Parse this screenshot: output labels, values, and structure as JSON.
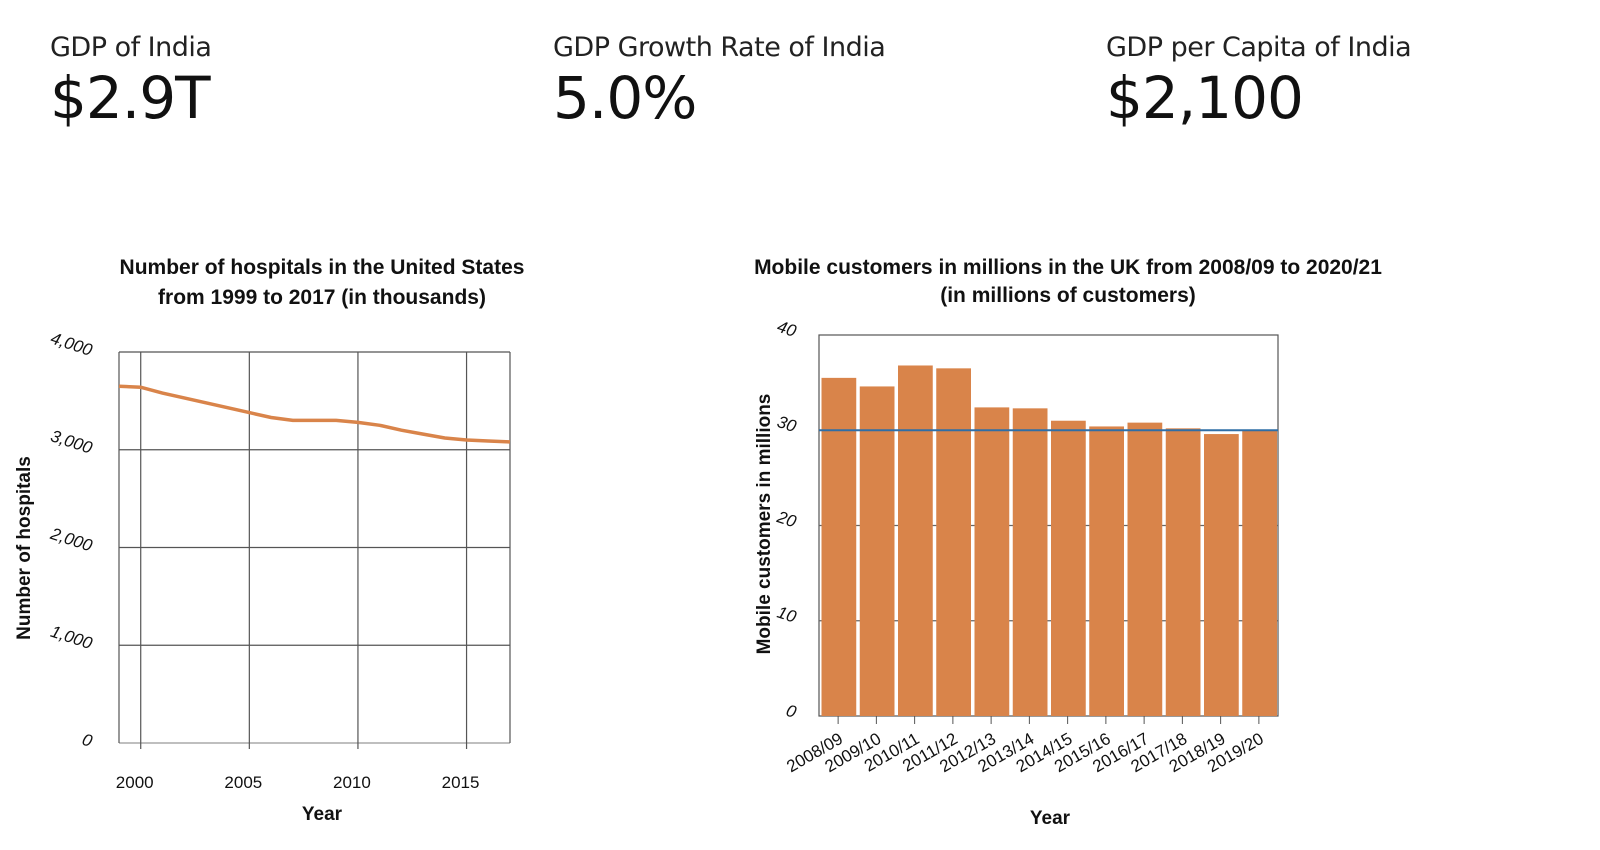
{
  "kpis": [
    {
      "label": "GDP of India",
      "value": "$2.9T"
    },
    {
      "label": "GDP Growth Rate of India",
      "value": "5.0%"
    },
    {
      "label": "GDP per Capita of India",
      "value": "$2,100"
    }
  ],
  "chart_data": [
    {
      "type": "line",
      "title": [
        "Number of hospitals in the United States",
        "from 1999 to 2017 (in thousands)"
      ],
      "xlabel": "Year",
      "ylabel": "Number of hospitals",
      "xlim": [
        1999,
        2017
      ],
      "ylim": [
        0,
        4000
      ],
      "xticks": [
        2000,
        2005,
        2010,
        2015
      ],
      "yticks": [
        "0",
        "1,000",
        "2,000",
        "3,000",
        "4,000"
      ],
      "grid": true,
      "series": [
        {
          "color": "#d9844a",
          "x": [
            1999,
            2000,
            2001,
            2002,
            2003,
            2004,
            2005,
            2006,
            2007,
            2008,
            2009,
            2010,
            2011,
            2012,
            2013,
            2014,
            2015,
            2016,
            2017
          ],
          "y": [
            3650,
            3640,
            3580,
            3530,
            3480,
            3430,
            3380,
            3330,
            3300,
            3300,
            3300,
            3280,
            3250,
            3200,
            3160,
            3120,
            3100,
            3090,
            3080
          ]
        }
      ]
    },
    {
      "type": "bar",
      "title": [
        "Mobile customers in millions in the UK from 2008/09 to 2020/21",
        "(in millions of customers)"
      ],
      "xlabel": "Year",
      "ylabel": "Mobile customers in millions",
      "ylim": [
        0,
        40
      ],
      "yticks": [
        "0",
        "10",
        "20",
        "30",
        "40"
      ],
      "categories": [
        "2008/09",
        "2009/10",
        "2010/11",
        "2011/12",
        "2012/13",
        "2013/14",
        "2014/15",
        "2015/16",
        "2016/17",
        "2017/18",
        "2018/19",
        "2019/20"
      ],
      "values": [
        35.5,
        34.6,
        36.8,
        36.5,
        32.4,
        32.3,
        31.0,
        30.4,
        30.8,
        30.2,
        29.6,
        30.0
      ],
      "bar_color": "#d9844a",
      "reference_line": {
        "value": 30,
        "color": "#2f6ea6"
      }
    }
  ]
}
